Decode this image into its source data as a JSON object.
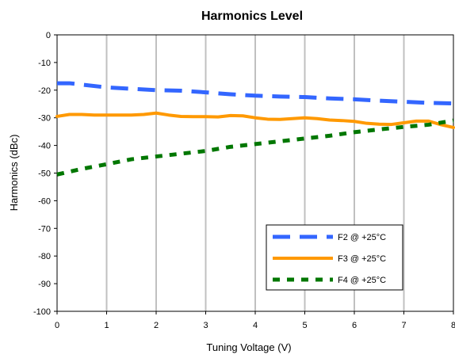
{
  "chart_data": {
    "type": "line",
    "title": "Harmonics Level",
    "xlabel": "Tuning Voltage (V)",
    "ylabel": "Harmonics (dBc)",
    "xlim": [
      0,
      8
    ],
    "ylim": [
      -100,
      0
    ],
    "x_ticks": [
      "0",
      "1",
      "2",
      "3",
      "4",
      "5",
      "6",
      "7",
      "8"
    ],
    "y_ticks": [
      "0",
      "-10",
      "-20",
      "-30",
      "-40",
      "-50",
      "-60",
      "-70",
      "-80",
      "-90",
      "-100"
    ],
    "grid": {
      "vertical": true,
      "horizontal": false
    },
    "legend_position": "bottom-right",
    "series": [
      {
        "name": "F2 @ +25°C",
        "color": "#3366ff",
        "dash": "long-dash",
        "x": [
          0,
          0.25,
          0.5,
          1,
          1.5,
          2,
          2.5,
          3,
          3.5,
          4,
          4.5,
          5,
          5.5,
          6,
          6.5,
          7,
          7.5,
          8
        ],
        "y": [
          -17.5,
          -17.5,
          -18,
          -19,
          -19.5,
          -20,
          -20.2,
          -20.8,
          -21.5,
          -22,
          -22.3,
          -22.5,
          -23,
          -23.3,
          -23.8,
          -24.2,
          -24.6,
          -24.8
        ]
      },
      {
        "name": "F3 @ +25°C",
        "color": "#ff9900",
        "dash": "solid",
        "x": [
          0,
          0.25,
          0.5,
          0.75,
          1,
          1.25,
          1.5,
          1.75,
          2,
          2.25,
          2.5,
          2.75,
          3,
          3.25,
          3.5,
          3.75,
          4,
          4.25,
          4.5,
          4.75,
          5,
          5.25,
          5.5,
          5.75,
          6,
          6.25,
          6.5,
          6.75,
          7,
          7.25,
          7.5,
          7.75,
          8
        ],
        "y": [
          -29.5,
          -28.8,
          -28.8,
          -29,
          -29,
          -29,
          -29,
          -28.8,
          -28.3,
          -29,
          -29.5,
          -29.6,
          -29.6,
          -29.7,
          -29.2,
          -29.3,
          -30,
          -30.5,
          -30.6,
          -30.3,
          -30,
          -30.3,
          -30.8,
          -31,
          -31.3,
          -32,
          -32.3,
          -32.4,
          -31.8,
          -31.2,
          -31.2,
          -32.5,
          -33.5
        ]
      },
      {
        "name": "F4 @ +25°C",
        "color": "#007700",
        "dash": "dotted",
        "x": [
          0,
          0.5,
          1,
          1.5,
          2,
          2.5,
          3,
          3.5,
          4,
          4.5,
          5,
          5.5,
          6,
          6.5,
          7,
          7.5,
          8
        ],
        "y": [
          -50.5,
          -48.5,
          -46.8,
          -45,
          -44,
          -43,
          -42,
          -40.5,
          -39.5,
          -38.5,
          -37.5,
          -36.5,
          -35.2,
          -34.2,
          -33.3,
          -32.5,
          -31
        ]
      }
    ]
  }
}
